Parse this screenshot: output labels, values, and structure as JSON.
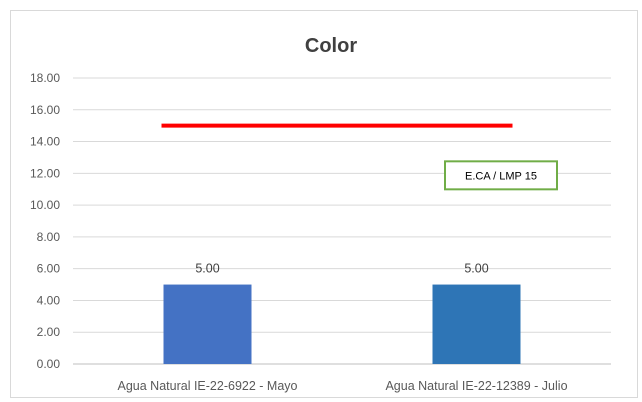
{
  "chart_data": {
    "type": "bar",
    "title": "Color",
    "xlabel": "",
    "ylabel": "",
    "categories": [
      "Agua Natural IE-22-6922 - Mayo",
      "Agua Natural IE-22-12389 - Julio"
    ],
    "values": [
      5.0,
      5.0
    ],
    "data_labels": [
      "5.00",
      "5.00"
    ],
    "ylim": [
      0,
      18
    ],
    "yticks": [
      0,
      2,
      4,
      6,
      8,
      10,
      12,
      14,
      16,
      18
    ],
    "ytick_labels": [
      "0.00",
      "2.00",
      "4.00",
      "6.00",
      "8.00",
      "10.00",
      "12.00",
      "14.00",
      "16.00",
      "18.00"
    ],
    "grid": true,
    "reference_line": {
      "value": 15,
      "color": "#ff0000"
    },
    "annotation": {
      "text": "E.CA / LMP 15",
      "y": 12,
      "border_color": "#70ad47"
    },
    "bar_colors": [
      "#4472c4",
      "#2e75b6"
    ]
  }
}
